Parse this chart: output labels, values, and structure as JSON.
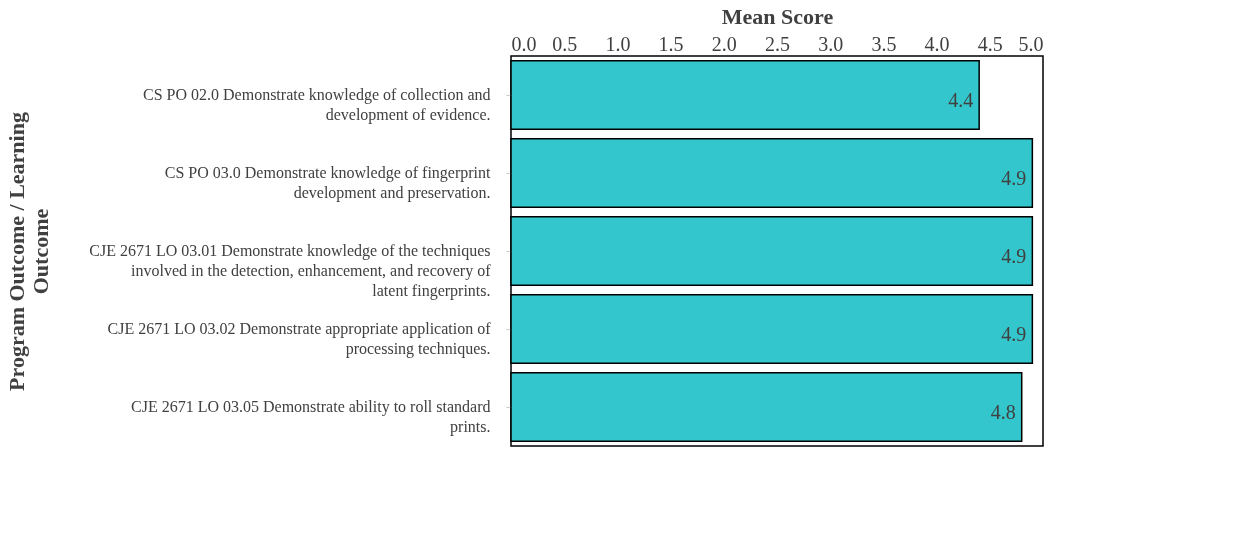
{
  "chart_data": {
    "type": "bar",
    "orientation": "horizontal",
    "xlabel": "Mean Score",
    "ylabel": "Program Outcome / Learning Outcome",
    "categories": [
      "CS PO 02.0 Demonstrate knowledge of collection and development of evidence.",
      "CS PO 03.0 Demonstrate knowledge of fingerprint development and preservation.",
      "CJE 2671 LO 03.01 Demonstrate knowledge of the techniques involved in the detection, enhancement, and recovery of latent fingerprints.",
      "CJE 2671 LO 03.02 Demonstrate appropriate application of processing techniques.",
      "CJE 2671 LO 03.05 Demonstrate ability to roll standard prints."
    ],
    "values": [
      4.4,
      4.9,
      4.9,
      4.9,
      4.8
    ],
    "color": "#33c6cc",
    "data_labels": true,
    "xlim": [
      0,
      5
    ],
    "xticks": [
      {
        "value": 0,
        "label": "0.0"
      },
      0.5,
      {
        "value": 1,
        "label": "1.0"
      },
      1.5,
      {
        "value": 2,
        "label": "2.0"
      },
      2.5,
      {
        "value": 3,
        "label": "3.0"
      },
      3.5,
      {
        "value": 4,
        "label": "4.0"
      },
      4.5,
      {
        "value": 5,
        "label": "5.0"
      }
    ],
    "grid": false
  }
}
